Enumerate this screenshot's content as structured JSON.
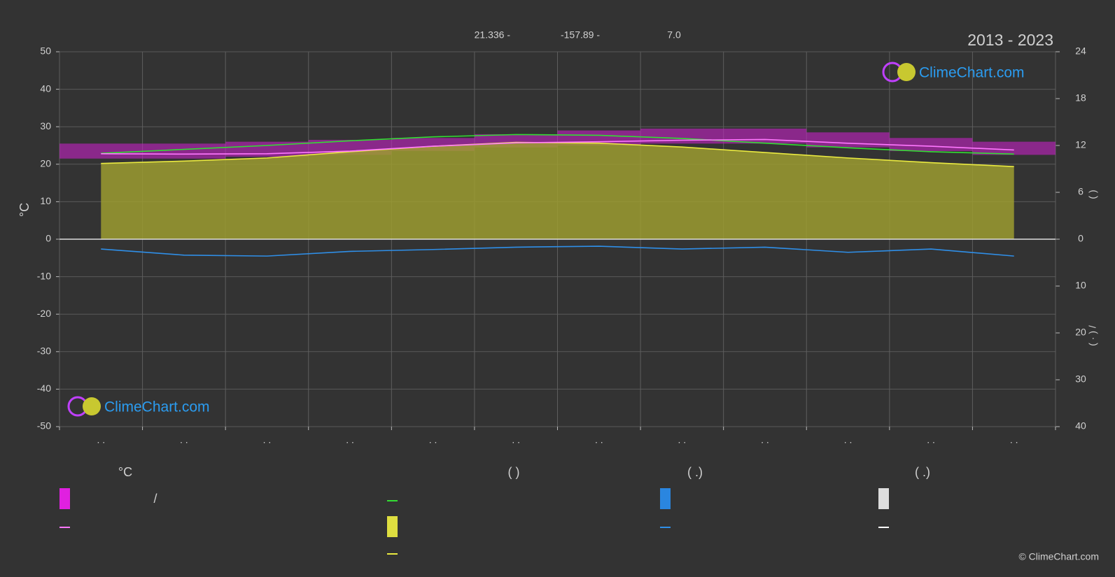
{
  "chart_data": {
    "type": "line",
    "title": "2013 - 2023",
    "annotations": [
      "21.336 -",
      "-157.89 -",
      "7.0"
    ],
    "ylabel": "°C",
    "y2label": "(            )",
    "y3label": "(  ·  )        /",
    "categories": [
      ". .",
      ". .",
      ". .",
      ". .",
      ". .",
      ". .",
      ". .",
      ". .",
      ". .",
      ". .",
      ". .",
      ". ."
    ],
    "ylim": [
      -50,
      50
    ],
    "yticks": [
      -50,
      -40,
      -30,
      -20,
      -10,
      0,
      10,
      20,
      30,
      40,
      50
    ],
    "y2lim": [
      0,
      24
    ],
    "y2ticks": [
      0,
      6,
      12,
      18,
      24
    ],
    "y3lim": [
      0,
      40
    ],
    "y3ticks": [
      10,
      20,
      30,
      40
    ],
    "grid": true,
    "band": {
      "color": "#d21fd2",
      "low": [
        21.5,
        21.5,
        22,
        22.5,
        23.5,
        24.5,
        25,
        25.5,
        25.5,
        24.5,
        23.5,
        22.5
      ],
      "high": [
        25.5,
        25.5,
        26,
        26.5,
        27,
        28,
        29,
        29.5,
        29.5,
        28.5,
        27,
        26
      ]
    },
    "series": [
      {
        "color": "#ff77ff",
        "values": [
          22.8,
          22.7,
          22.8,
          23.5,
          24.8,
          25.7,
          26.0,
          26.4,
          26.6,
          25.6,
          24.8,
          23.8
        ]
      },
      {
        "color": "#33dd33",
        "axis": "y2",
        "values": [
          11.0,
          11.5,
          12.0,
          12.6,
          13.1,
          13.4,
          13.3,
          12.9,
          12.3,
          11.7,
          11.2,
          10.9
        ]
      },
      {
        "color": "#eaea40",
        "axis": "y2",
        "fill": "#9c9c30",
        "values": [
          9.7,
          10.0,
          10.4,
          11.2,
          11.9,
          12.4,
          12.3,
          11.8,
          11.1,
          10.4,
          9.8,
          9.3
        ]
      },
      {
        "color": "#2f8fe8",
        "axis": "y3",
        "values": [
          2.1,
          3.4,
          3.6,
          2.6,
          2.2,
          1.7,
          1.5,
          2.1,
          1.7,
          2.8,
          2.1,
          3.6
        ]
      }
    ],
    "legend": {
      "headers": [
        "°C",
        "(          )",
        "(   .)",
        "(   .)"
      ],
      "items": [
        "/"
      ]
    }
  },
  "watermark": "ClimeChart.com",
  "credit": "© ClimeChart.com"
}
